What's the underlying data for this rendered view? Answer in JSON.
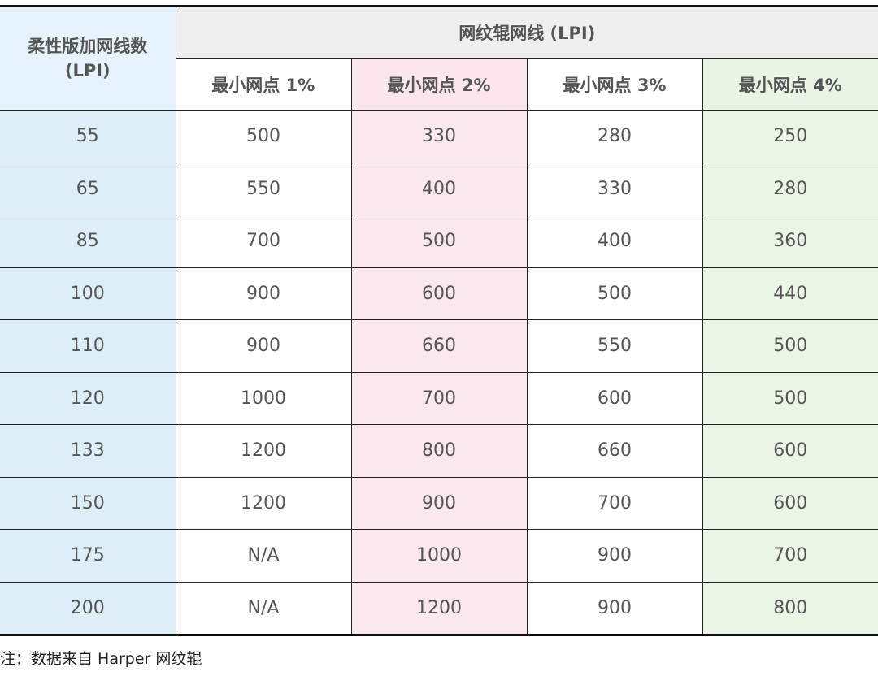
{
  "table": {
    "corner_header_line1": "柔性版加网线数",
    "corner_header_line2": "(LPI)",
    "group_header": "网纹辊网线 (LPI)",
    "sub_headers": [
      "最小网点 1%",
      "最小网点 2%",
      "最小网点 3%",
      "最小网点 4%"
    ],
    "rows": [
      [
        "55",
        "500",
        "330",
        "280",
        "250"
      ],
      [
        "65",
        "550",
        "400",
        "330",
        "280"
      ],
      [
        "85",
        "700",
        "500",
        "400",
        "360"
      ],
      [
        "100",
        "900",
        "600",
        "500",
        "440"
      ],
      [
        "110",
        "900",
        "660",
        "550",
        "500"
      ],
      [
        "120",
        "1000",
        "700",
        "600",
        "500"
      ],
      [
        "133",
        "1200",
        "800",
        "660",
        "600"
      ],
      [
        "150",
        "1200",
        "900",
        "700",
        "600"
      ],
      [
        "175",
        "N/A",
        "1000",
        "900",
        "700"
      ],
      [
        "200",
        "N/A",
        "1200",
        "900",
        "800"
      ]
    ]
  },
  "note": "注：数据来自 Harper 网纹辊",
  "colors": {
    "lpi_column": "#ddeef9",
    "dot_2_column": "#fbe8ef",
    "dot_4_column": "#ebf5e6",
    "group_header_bg": "#efefef"
  }
}
